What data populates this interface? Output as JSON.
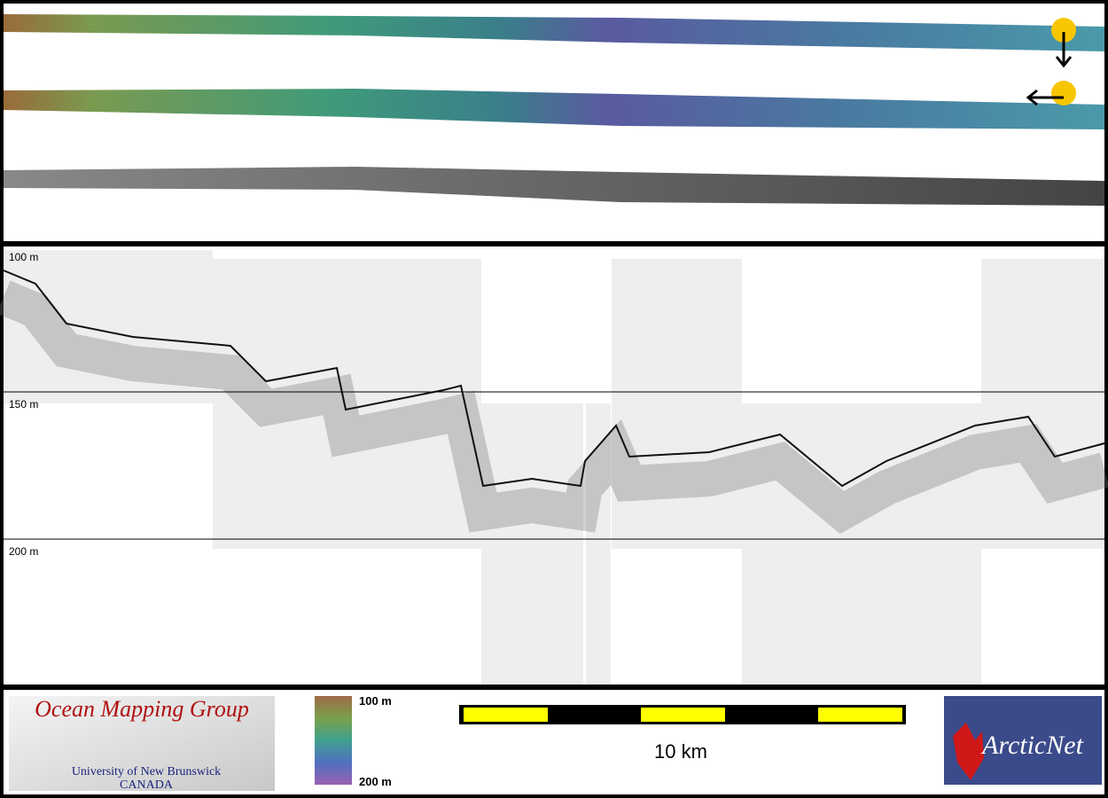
{
  "profile": {
    "depth_labels": [
      "100 m",
      "150 m",
      "200 m"
    ]
  },
  "legend": {
    "top": "100 m",
    "bottom": "200 m"
  },
  "scale_bar": {
    "label": "10 km"
  },
  "logos": {
    "omg": {
      "title": "Ocean Mapping Group",
      "university": "University of New Brunswick",
      "country": "CANADA"
    },
    "arcticnet": "ArcticNet"
  }
}
